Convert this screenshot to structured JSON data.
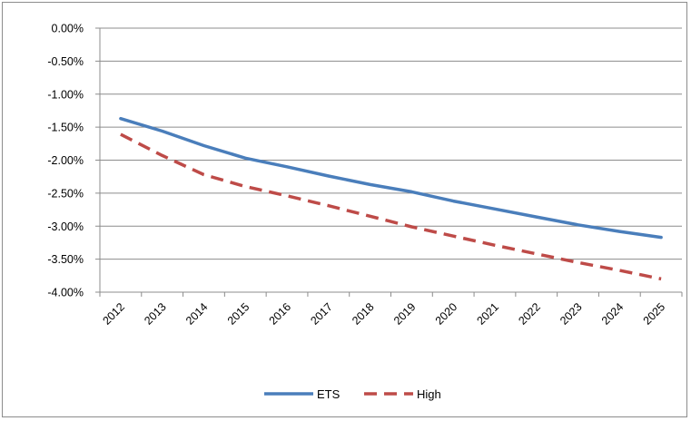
{
  "chart_data": {
    "type": "line",
    "title": "",
    "xlabel": "",
    "ylabel": "",
    "categories": [
      "2012",
      "2013",
      "2014",
      "2015",
      "2016",
      "2017",
      "2018",
      "2019",
      "2020",
      "2021",
      "2022",
      "2023",
      "2024",
      "2025"
    ],
    "ylim": [
      -4.0,
      0.0
    ],
    "y_ticks": [
      "0.00%",
      "-0.50%",
      "-1.00%",
      "-1.50%",
      "-2.00%",
      "-2.50%",
      "-3.00%",
      "-3.50%",
      "-4.00%"
    ],
    "y_tick_values": [
      0.0,
      -0.5,
      -1.0,
      -1.5,
      -2.0,
      -2.5,
      -3.0,
      -3.5,
      -4.0
    ],
    "grid": true,
    "legend_position": "bottom",
    "series": [
      {
        "name": "ETS",
        "color": "#4a7ebb",
        "style": "solid",
        "values": [
          -1.37,
          -1.56,
          -1.78,
          -1.97,
          -2.1,
          -2.24,
          -2.37,
          -2.48,
          -2.62,
          -2.74,
          -2.86,
          -2.98,
          -3.08,
          -3.17
        ]
      },
      {
        "name": "High",
        "color": "#be4b48",
        "style": "dashed",
        "values": [
          -1.61,
          -1.93,
          -2.22,
          -2.4,
          -2.54,
          -2.69,
          -2.85,
          -3.01,
          -3.15,
          -3.29,
          -3.42,
          -3.55,
          -3.67,
          -3.8
        ]
      }
    ]
  }
}
